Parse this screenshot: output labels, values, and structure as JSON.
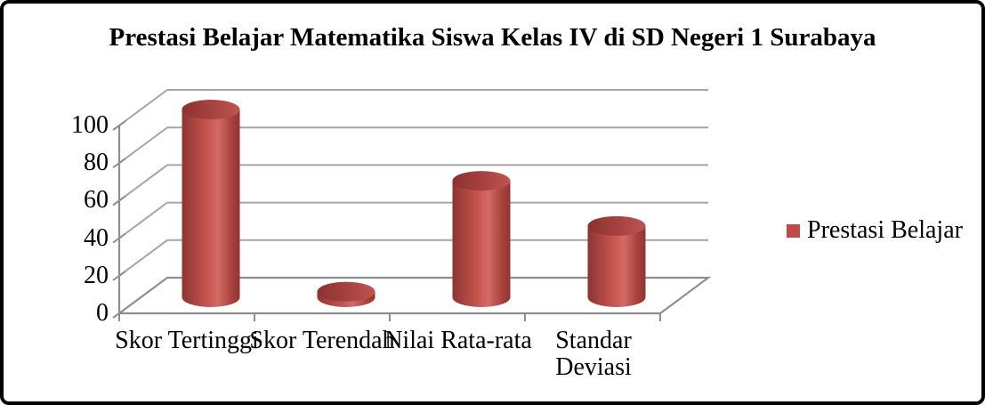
{
  "chart_data": {
    "type": "bar",
    "subtype": "3d-cylinder",
    "title": "Prestasi Belajar Matematika Siswa Kelas IV di SD Negeri 1 Surabaya",
    "categories": [
      "Skor Tertinggi",
      "Skor Terendah",
      "Nilai Rata-rata",
      "Standar Deviasi"
    ],
    "series": [
      {
        "name": "Prestasi Belajar",
        "values": [
          100,
          3,
          62,
          38
        ]
      }
    ],
    "ylim": [
      0,
      100
    ],
    "yticks": [
      0,
      20,
      40,
      60,
      80,
      100
    ],
    "xlabel": "",
    "ylabel": "",
    "grid": true,
    "legend_position": "right",
    "colors": {
      "bar_edge_dark": "#8E3432",
      "bar_mid": "#C9544F",
      "bar_highlight": "#D26B66",
      "bar_top_dark": "#8A3230",
      "bar_top_mid": "#A84341",
      "bar_top_light": "#BE5451",
      "legend_marker": "#BE4B48",
      "gridline": "#A6A6A6",
      "axis": "#8F8F8F",
      "text": "#000000",
      "border": "#000000",
      "background": "#FFFFFF"
    }
  }
}
